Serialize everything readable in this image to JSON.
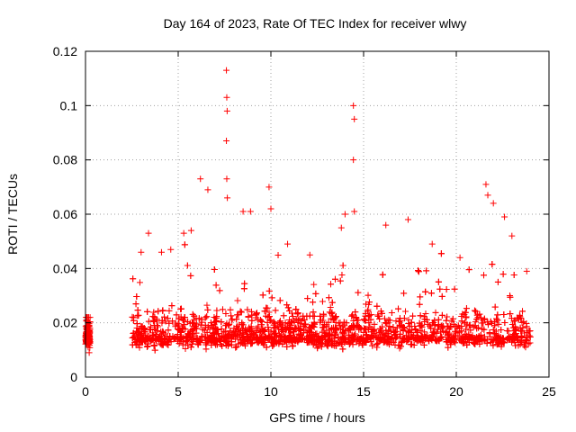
{
  "chart_data": {
    "type": "scatter",
    "title": "Day 164 of 2023, Rate Of TEC Index for receiver wlwy",
    "xlabel": "GPS time / hours",
    "ylabel": "ROTI / TECUs",
    "xlim": [
      0,
      25
    ],
    "ylim": [
      0,
      0.12
    ],
    "xticks": [
      0,
      5,
      10,
      15,
      20,
      25
    ],
    "yticks": [
      0,
      0.02,
      0.04,
      0.06,
      0.08,
      0.1,
      0.12
    ],
    "xtick_labels": [
      "0",
      "5",
      "10",
      "15",
      "20",
      "25"
    ],
    "ytick_labels": [
      "0",
      "0.02",
      "0.04",
      "0.06",
      "0.08",
      "0.1",
      "0.12"
    ],
    "grid": true,
    "marker": "+",
    "series_color": "#ff0000",
    "series": [
      {
        "name": "ROTI",
        "points": [
          [
            0.05,
            0.021
          ],
          [
            0.1,
            0.018
          ],
          [
            0.15,
            0.012
          ],
          [
            0.2,
            0.009
          ],
          [
            3.0,
            0.046
          ],
          [
            3.4,
            0.053
          ],
          [
            4.1,
            0.046
          ],
          [
            4.6,
            0.047
          ],
          [
            5.3,
            0.053
          ],
          [
            5.7,
            0.054
          ],
          [
            6.2,
            0.073
          ],
          [
            6.6,
            0.069
          ],
          [
            7.6,
            0.113
          ],
          [
            7.62,
            0.103
          ],
          [
            7.64,
            0.098
          ],
          [
            7.6,
            0.087
          ],
          [
            7.62,
            0.073
          ],
          [
            7.65,
            0.066
          ],
          [
            8.5,
            0.061
          ],
          [
            8.9,
            0.061
          ],
          [
            9.9,
            0.07
          ],
          [
            10.0,
            0.062
          ],
          [
            10.9,
            0.049
          ],
          [
            12.1,
            0.045
          ],
          [
            13.8,
            0.055
          ],
          [
            14.0,
            0.06
          ],
          [
            14.45,
            0.1
          ],
          [
            14.5,
            0.095
          ],
          [
            14.45,
            0.08
          ],
          [
            14.5,
            0.061
          ],
          [
            16.2,
            0.056
          ],
          [
            17.4,
            0.058
          ],
          [
            18.7,
            0.049
          ],
          [
            20.2,
            0.044
          ],
          [
            21.6,
            0.071
          ],
          [
            21.7,
            0.067
          ],
          [
            22.0,
            0.064
          ],
          [
            22.6,
            0.059
          ],
          [
            23.0,
            0.052
          ],
          [
            23.8,
            0.039
          ]
        ]
      }
    ]
  }
}
